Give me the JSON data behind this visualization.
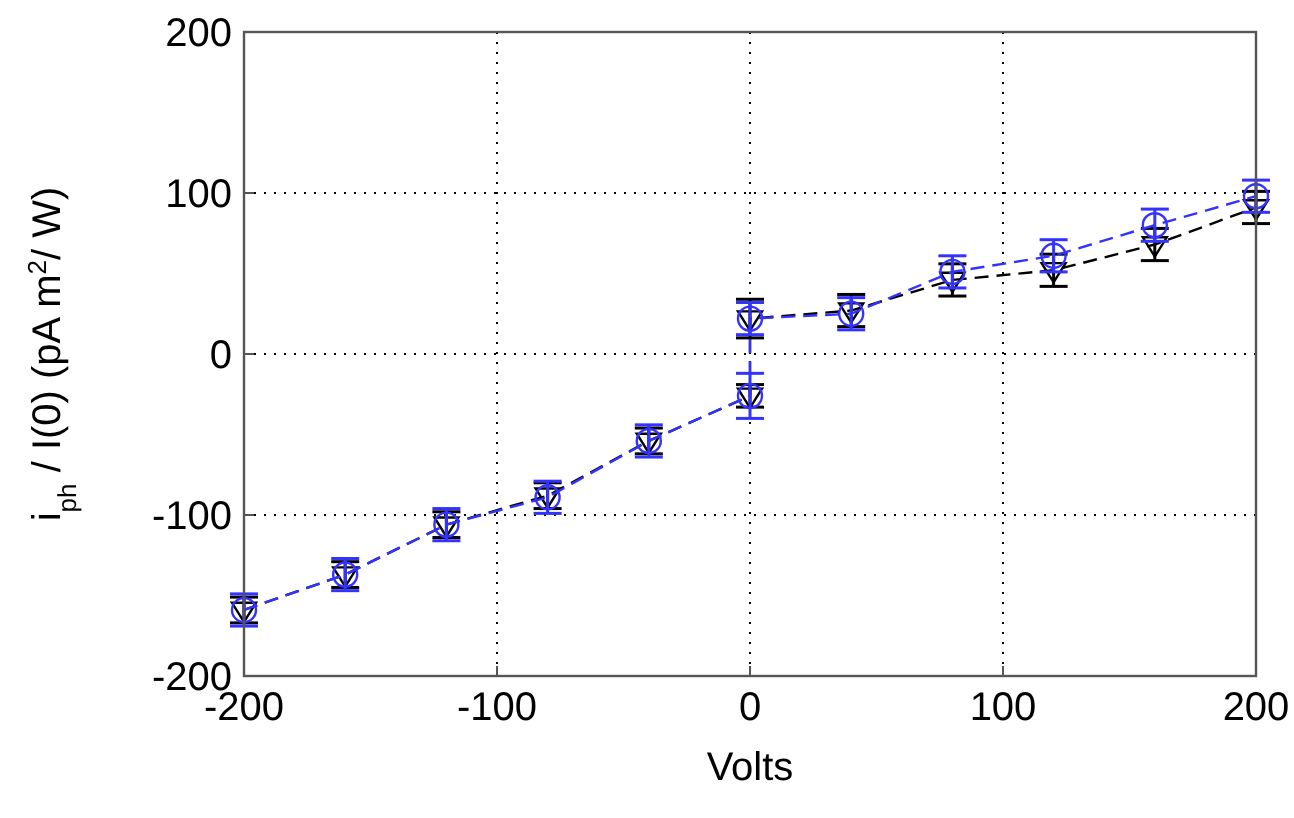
{
  "chart_data": {
    "type": "line",
    "xlabel": "Volts",
    "ylabel": "i$_{ph}$ / I(0)  (pA m$^{2}$/ W)",
    "x": [
      -200,
      -160,
      -120,
      -80,
      -40,
      0,
      0,
      40,
      80,
      120,
      160,
      200
    ],
    "xlim": [
      -200,
      200
    ],
    "xticks": [
      -200,
      -100,
      0,
      100,
      200
    ],
    "ylim": [
      -200,
      200
    ],
    "yticks": [
      -200,
      -100,
      0,
      100,
      200
    ],
    "grid": true,
    "series": [
      {
        "color": "#000000",
        "marker": "triangle",
        "line_style": "dashed",
        "values": [
          -159,
          -137,
          -106,
          -88,
          -54,
          -26,
          22,
          27,
          46,
          52,
          68,
          91
        ],
        "errors": [
          8,
          8,
          8,
          8,
          8,
          7,
          12,
          10,
          10,
          10,
          10,
          10
        ]
      },
      {
        "color": "#3333ff",
        "marker": "circle",
        "line_style": "dashed",
        "values": [
          -159,
          -137,
          -106,
          -89,
          -54,
          -26,
          22,
          25,
          51,
          61,
          80,
          98
        ],
        "errors": [
          10,
          10,
          10,
          10,
          10,
          14,
          10,
          10,
          10,
          10,
          10,
          10
        ]
      }
    ]
  }
}
